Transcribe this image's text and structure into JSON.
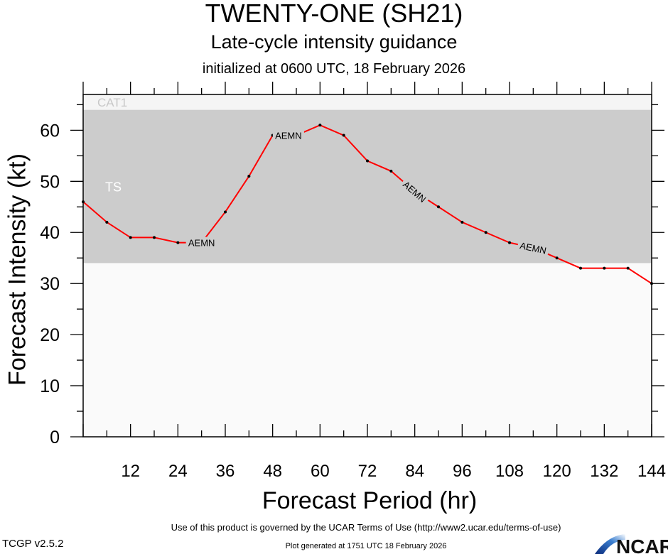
{
  "title": "TWENTY-ONE (SH21)",
  "subtitle": "Late-cycle intensity guidance",
  "initialized": "initialized at 0600 UTC, 18 February 2026",
  "footer": {
    "terms": "Use of this product is governed by the UCAR Terms of Use (http://www2.ucar.edu/terms-of-use)",
    "generated": "Plot generated at 1751 UTC   18 February 2026",
    "version": "TCGP v2.5.2",
    "logo": "NCAR"
  },
  "chart_data": {
    "type": "line",
    "xlabel": "Forecast Period (hr)",
    "ylabel": "Forecast Intensity (kt)",
    "xlim": [
      0,
      144
    ],
    "ylim": [
      0,
      67
    ],
    "xticks": [
      12,
      24,
      36,
      48,
      60,
      72,
      84,
      96,
      108,
      120,
      132,
      144
    ],
    "yticks": [
      0,
      10,
      20,
      30,
      40,
      50,
      60
    ],
    "bands": [
      {
        "label": "TS",
        "from": 34,
        "to": 64,
        "color": "#cccccc"
      },
      {
        "label": "CAT1",
        "from": 64,
        "to": 83,
        "color": "#f5f5f5"
      }
    ],
    "background": "#fafafa",
    "series": [
      {
        "name": "AEMN",
        "color": "#ff0000",
        "x": [
          0,
          6,
          12,
          18,
          24,
          30,
          36,
          42,
          48,
          54,
          60,
          66,
          72,
          78,
          84,
          90,
          96,
          102,
          108,
          114,
          120,
          126,
          132,
          138,
          144
        ],
        "y": [
          46,
          42,
          39,
          39,
          38,
          38,
          44,
          51,
          59,
          59,
          61,
          59,
          54,
          52,
          48,
          45,
          42,
          40,
          38,
          37,
          35,
          33,
          33,
          33,
          30
        ],
        "label_positions_hr": [
          30,
          52,
          84,
          114
        ]
      }
    ]
  }
}
